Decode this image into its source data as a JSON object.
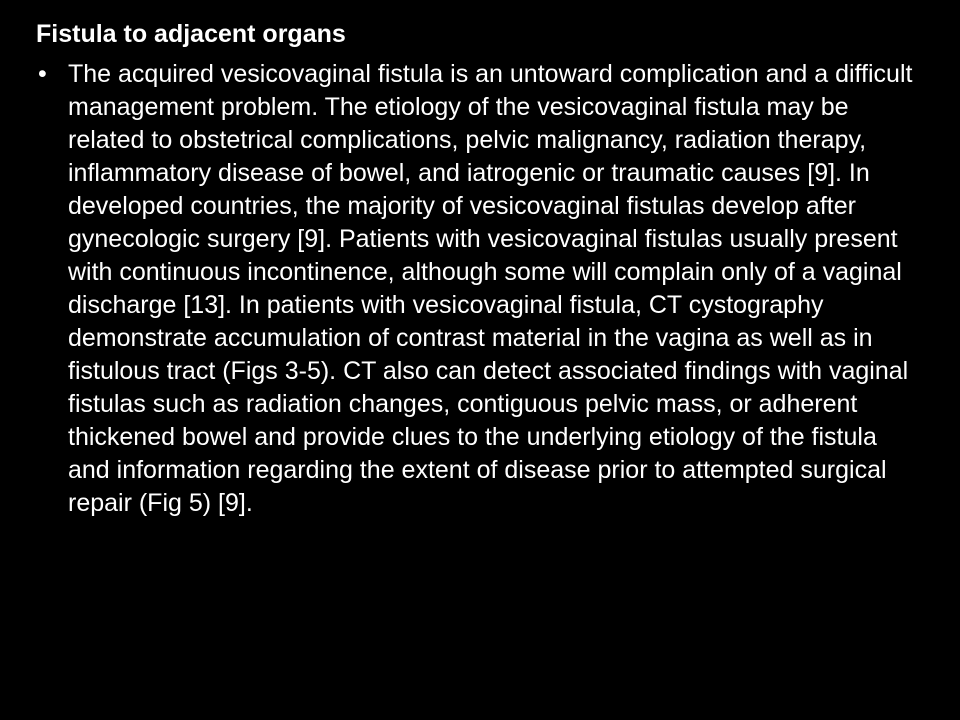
{
  "slide": {
    "background_color": "#000000",
    "text_color": "#ffffff",
    "font_family": "Arial",
    "title": {
      "text": "Fistula to adjacent organs",
      "font_size_pt": 25,
      "font_weight": "bold"
    },
    "bullets": [
      {
        "marker": "•",
        "text": "The acquired vesicovaginal fistula is an untoward complication and a difficult management problem. The etiology of the vesicovaginal fistula may be related to obstetrical complications, pelvic malignancy, radiation therapy, inflammatory disease of bowel, and iatrogenic or traumatic causes [9]. In developed countries, the majority of vesicovaginal fistulas develop after gynecologic surgery [9]. Patients with vesicovaginal fistulas usually present with continuous incontinence, although some will complain only of a vaginal discharge [13]. In patients with vesicovaginal fistula, CT cystography demonstrate accumulation of contrast material in the vagina as well as in fistulous tract (Figs 3-5). CT also can detect associated findings with vaginal fistulas such as radiation changes, contiguous pelvic mass, or adherent thickened bowel and provide clues to the underlying etiology of the fistula and information regarding the extent of disease prior to attempted surgical repair (Fig 5) [9].",
        "font_size_pt": 25,
        "font_weight": "normal"
      }
    ]
  }
}
